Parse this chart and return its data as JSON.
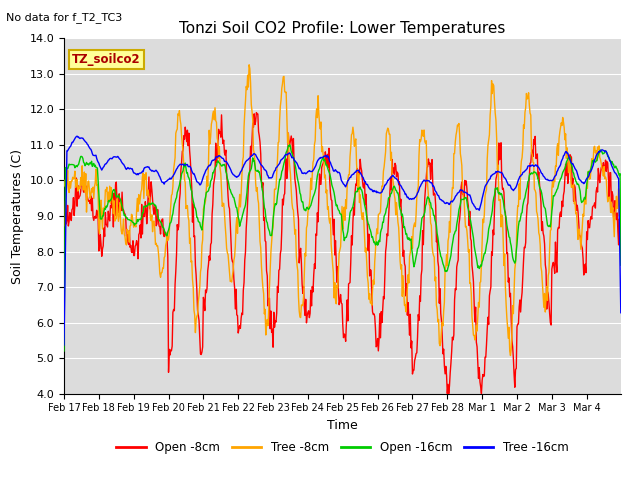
{
  "title": "Tonzi Soil CO2 Profile: Lower Temperatures",
  "subtitle": "No data for f_T2_TC3",
  "xlabel": "Time",
  "ylabel": "Soil Temperatures (C)",
  "ylim": [
    4.0,
    14.0
  ],
  "yticks": [
    4.0,
    5.0,
    6.0,
    7.0,
    8.0,
    9.0,
    10.0,
    11.0,
    12.0,
    13.0,
    14.0
  ],
  "background_color": "#e8e8e8",
  "plot_bg": "#dcdcdc",
  "legend_label": "TZ_soilco2",
  "legend_entries": [
    "Open -8cm",
    "Tree -8cm",
    "Open -16cm",
    "Tree -16cm"
  ],
  "legend_colors": [
    "#ff0000",
    "#ffa500",
    "#00cc00",
    "#0000ff"
  ],
  "x_tick_labels": [
    "Feb 17",
    "Feb 18",
    "Feb 19",
    "Feb 20",
    "Feb 21",
    "Feb 22",
    "Feb 23",
    "Feb 24",
    "Feb 25",
    "Feb 26",
    "Feb 27",
    "Feb 28",
    "Mar 1",
    "Mar 2",
    "Mar 3",
    "Mar 4"
  ]
}
